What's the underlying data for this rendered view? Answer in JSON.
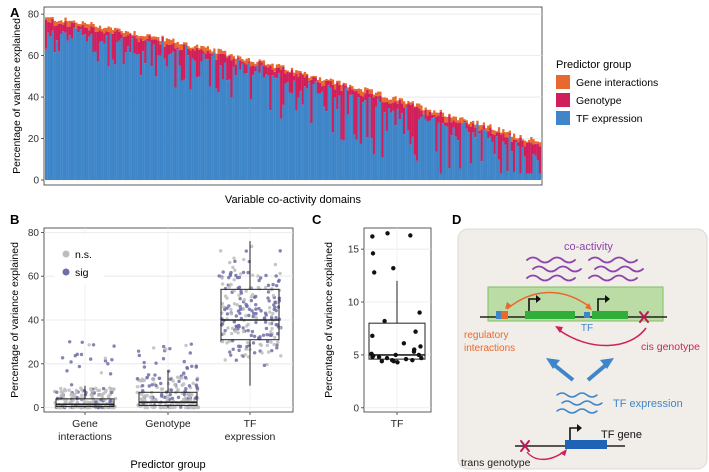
{
  "panels": {
    "a": {
      "letter": "A",
      "ylabel": "Percentage of variance explained",
      "xlabel": "Variable co-activity domains",
      "legend_title": "Predictor group",
      "legend": [
        {
          "label": "Gene interactions",
          "color": "#E8692E"
        },
        {
          "label": "Genotype",
          "color": "#D11F5C"
        },
        {
          "label": "TF expression",
          "color": "#3F86C9"
        }
      ]
    },
    "b": {
      "letter": "B",
      "ylabel": "Percentage of variance explained",
      "xlabel": "Predictor group",
      "legend": [
        {
          "label": "n.s.",
          "color": "#BDBDBD"
        },
        {
          "label": "sig",
          "color": "#6E6EA8"
        }
      ]
    },
    "c": {
      "letter": "C",
      "ylabel": "Percentage of variance explained"
    },
    "d": {
      "letter": "D",
      "labels": {
        "coactivity": "co-activity",
        "tf_small": "TF",
        "regulatory_1": "regulatory",
        "regulatory_2": "interactions",
        "cis": "cis genotype",
        "tf_expression": "TF expression",
        "tf_gene": "TF gene",
        "trans": "trans genotype"
      },
      "colors": {
        "purple": "#8E44AD",
        "orange": "#E8692E",
        "magenta": "#D11F5C",
        "blue": "#3F86C9",
        "green": "#2FAF3A"
      }
    }
  },
  "chart_data": [
    {
      "panel": "A",
      "type": "bar",
      "stacked": true,
      "n_domains": 230,
      "ylabel": "Percentage of variance explained",
      "xlabel": "Variable co-activity domains",
      "ylim": [
        0,
        82
      ],
      "yticks": [
        0,
        20,
        40,
        60,
        80
      ],
      "total_trend": {
        "start": 78,
        "end": 18
      },
      "series": [
        {
          "name": "TF expression",
          "color": "#3F86C9",
          "typical_fraction": 0.9
        },
        {
          "name": "Genotype",
          "color": "#D11F5C"
        },
        {
          "name": "Gene interactions",
          "color": "#E8692E"
        }
      ]
    },
    {
      "panel": "B",
      "type": "box",
      "categories": [
        "Gene\ninteractions",
        "Genotype",
        "TF\nexpression"
      ],
      "category_lines": [
        [
          "Gene",
          "interactions"
        ],
        [
          "Genotype"
        ],
        [
          "TF",
          "expression"
        ]
      ],
      "ylim": [
        -2,
        82
      ],
      "yticks": [
        0,
        20,
        40,
        60,
        80
      ],
      "boxes": [
        {
          "category": "Gene interactions",
          "q1": 0.5,
          "median": 1.5,
          "q3": 4,
          "whisker_low": 0,
          "whisker_high": 10
        },
        {
          "category": "Genotype",
          "q1": 1,
          "median": 2.5,
          "q3": 7,
          "whisker_low": 0,
          "whisker_high": 17
        },
        {
          "category": "TF expression",
          "q1": 31,
          "median": 40,
          "q3": 54,
          "whisker_low": 10,
          "whisker_high": 76
        }
      ],
      "point_legend": [
        "n.s.",
        "sig"
      ]
    },
    {
      "panel": "C",
      "type": "box",
      "categories": [
        "TF"
      ],
      "ylim": [
        -0.4,
        17
      ],
      "yticks": [
        0,
        5,
        10,
        15
      ],
      "box": {
        "q1": 4.6,
        "median": 5.0,
        "q3": 8.0,
        "whisker_low": 4.3,
        "whisker_high": 12.0
      },
      "points": [
        16.5,
        16.3,
        16.2,
        14.6,
        13.2,
        12.8,
        9.0,
        8.2,
        7.2,
        6.8,
        6.1,
        5.8,
        5.5,
        5.3,
        5.1,
        5.0,
        5.0,
        4.9,
        4.8,
        4.8,
        4.7,
        4.7,
        4.6,
        4.5,
        4.5,
        4.4,
        4.4,
        4.3
      ]
    }
  ]
}
